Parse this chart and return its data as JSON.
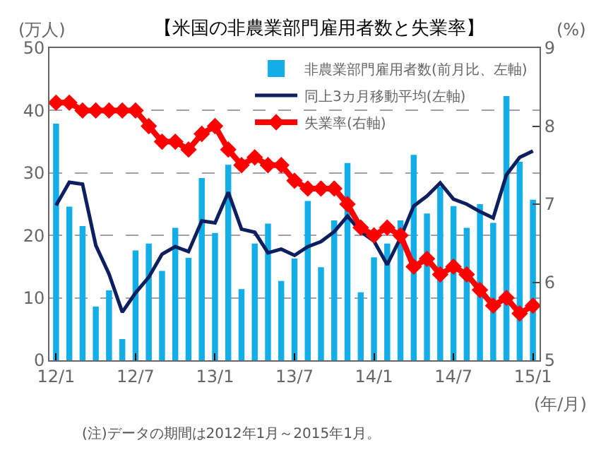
{
  "chart_data": {
    "type": "bar",
    "title": "【米国の非農業部門雇用者数と失業率】",
    "ylabel": "(万人)",
    "y2label": "(%)",
    "xlabel": "(年/月)",
    "annotations": [
      "(注)データの期間は2012年1月～2015年1月。"
    ],
    "categories": [
      "12/1",
      null,
      null,
      null,
      null,
      null,
      "12/7",
      null,
      null,
      null,
      null,
      null,
      "13/1",
      null,
      null,
      null,
      null,
      null,
      "13/7",
      null,
      null,
      null,
      null,
      null,
      "14/1",
      null,
      null,
      null,
      null,
      null,
      "14/7",
      null,
      null,
      null,
      null,
      null,
      "15/1"
    ],
    "series": [
      {
        "name": "非農業部門雇用者数(前月比、左軸)",
        "color": "#13aee8",
        "values": [
          37.9,
          24.6,
          21.5,
          8.6,
          11.2,
          3.4,
          17.6,
          18.7,
          14.3,
          21.2,
          16.4,
          29.2,
          20.4,
          31.3,
          11.4,
          18.7,
          21.9,
          12.7,
          16.3,
          25.5,
          14.9,
          22.4,
          31.6,
          10.9,
          16.5,
          18.7,
          22.4,
          32.9,
          23.5,
          27.8,
          24.7,
          21.2,
          25.0,
          22.0,
          42.3,
          31.8,
          25.7
        ]
      },
      {
        "name": "同上3カ月移動平均(左軸)",
        "type": "line",
        "color": "#0d1f5e",
        "marker": "none",
        "values": [
          24.8,
          28.5,
          28.2,
          18.4,
          13.8,
          7.7,
          10.8,
          13.3,
          17.0,
          18.2,
          17.4,
          22.3,
          22.0,
          26.9,
          21.0,
          20.5,
          17.2,
          17.8,
          16.8,
          18.2,
          19.0,
          20.6,
          23.1,
          20.6,
          19.1,
          15.3,
          19.6,
          24.7,
          26.3,
          28.4,
          25.8,
          25.0,
          23.8,
          22.8,
          29.7,
          32.5,
          33.5
        ]
      },
      {
        "name": "失業率(右軸)",
        "type": "line",
        "axis": "y2",
        "color": "#ff0000",
        "marker": "diamond",
        "values": [
          8.3,
          8.3,
          8.2,
          8.2,
          8.2,
          8.2,
          8.2,
          8.0,
          7.8,
          7.8,
          7.7,
          7.9,
          8.0,
          7.7,
          7.5,
          7.6,
          7.5,
          7.5,
          7.3,
          7.2,
          7.2,
          7.2,
          7.0,
          6.7,
          6.6,
          6.7,
          6.6,
          6.2,
          6.3,
          6.1,
          6.2,
          6.1,
          5.9,
          5.7,
          5.8,
          5.6,
          5.7
        ]
      }
    ],
    "ylim": [
      0,
      50
    ],
    "yticks": [
      0,
      10,
      20,
      30,
      40,
      50
    ],
    "y2lim": [
      5,
      9
    ],
    "y2ticks": [
      5,
      6,
      7,
      8,
      9
    ],
    "grid": "y",
    "legend": "top right"
  }
}
